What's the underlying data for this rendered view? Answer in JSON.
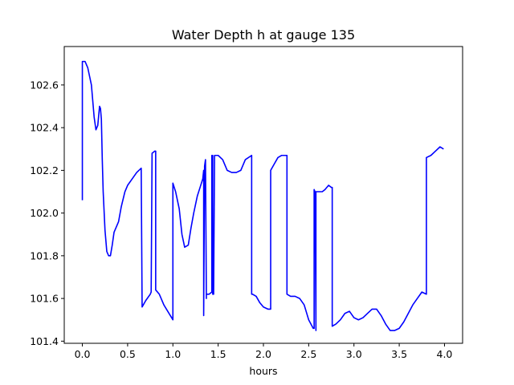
{
  "chart_data": {
    "type": "line",
    "title": "Water Depth h at gauge 135",
    "xlabel": "hours",
    "ylabel": "",
    "xlim": [
      -0.2,
      4.2
    ],
    "ylim": [
      101.39,
      102.78
    ],
    "xticks": [
      0.0,
      0.5,
      1.0,
      1.5,
      2.0,
      2.5,
      3.0,
      3.5,
      4.0
    ],
    "xtick_labels": [
      "0.0",
      "0.5",
      "1.0",
      "1.5",
      "2.0",
      "2.5",
      "3.0",
      "3.5",
      "4.0"
    ],
    "yticks": [
      101.4,
      101.6,
      101.8,
      102.0,
      102.2,
      102.4,
      102.6
    ],
    "ytick_labels": [
      "101.4",
      "101.6",
      "101.8",
      "102.0",
      "102.2",
      "102.4",
      "102.6"
    ],
    "grid": false,
    "series": [
      {
        "color": "#0000ff",
        "x": [
          0.0,
          0.0,
          0.03,
          0.06,
          0.1,
          0.13,
          0.15,
          0.17,
          0.19,
          0.2,
          0.21,
          0.22,
          0.23,
          0.25,
          0.27,
          0.29,
          0.31,
          0.33,
          0.35,
          0.37,
          0.4,
          0.43,
          0.47,
          0.5,
          0.55,
          0.6,
          0.65,
          0.66,
          0.66,
          0.7,
          0.75,
          0.76,
          0.77,
          0.8,
          0.81,
          0.81,
          0.85,
          0.9,
          1.0,
          1.0,
          1.03,
          1.07,
          1.1,
          1.13,
          1.17,
          1.2,
          1.23,
          1.27,
          1.3,
          1.33,
          1.34,
          1.34,
          1.35,
          1.36,
          1.37,
          1.37,
          1.4,
          1.43,
          1.43,
          1.44,
          1.44,
          1.45,
          1.46,
          1.46,
          1.5,
          1.55,
          1.6,
          1.65,
          1.7,
          1.75,
          1.8,
          1.87,
          1.87,
          1.88,
          1.92,
          1.96,
          2.0,
          2.05,
          2.08,
          2.08,
          2.12,
          2.16,
          2.2,
          2.25,
          2.26,
          2.26,
          2.3,
          2.35,
          2.4,
          2.45,
          2.5,
          2.55,
          2.56,
          2.56,
          2.57,
          2.58,
          2.58,
          2.6,
          2.65,
          2.68,
          2.72,
          2.75,
          2.75,
          2.76,
          2.76,
          2.8,
          2.85,
          2.9,
          2.95,
          3.0,
          3.05,
          3.1,
          3.15,
          3.2,
          3.25,
          3.3,
          3.35,
          3.4,
          3.45,
          3.5,
          3.55,
          3.6,
          3.65,
          3.7,
          3.75,
          3.8,
          3.8,
          3.85,
          3.9,
          3.95,
          3.99
        ],
        "y": [
          102.06,
          102.71,
          102.71,
          102.68,
          102.6,
          102.45,
          102.39,
          102.41,
          102.5,
          102.49,
          102.44,
          102.25,
          102.1,
          101.92,
          101.82,
          101.8,
          101.8,
          101.85,
          101.91,
          101.93,
          101.96,
          102.03,
          102.1,
          102.13,
          102.16,
          102.19,
          102.21,
          101.56,
          101.56,
          101.59,
          101.62,
          101.63,
          102.28,
          102.29,
          102.29,
          101.64,
          101.62,
          101.57,
          101.5,
          102.14,
          102.1,
          102.02,
          101.9,
          101.84,
          101.85,
          101.93,
          102.0,
          102.08,
          102.12,
          102.16,
          102.2,
          101.52,
          102.22,
          102.25,
          101.6,
          101.62,
          101.62,
          101.63,
          102.27,
          102.27,
          101.62,
          101.62,
          102.27,
          102.27,
          102.27,
          102.25,
          102.2,
          102.19,
          102.19,
          102.2,
          102.25,
          102.27,
          101.62,
          101.62,
          101.61,
          101.58,
          101.56,
          101.55,
          101.55,
          102.2,
          102.23,
          102.26,
          102.27,
          102.27,
          102.27,
          101.62,
          101.61,
          101.61,
          101.6,
          101.57,
          101.5,
          101.46,
          101.46,
          102.11,
          102.1,
          101.45,
          102.1,
          102.1,
          102.1,
          102.11,
          102.13,
          102.12,
          102.12,
          102.12,
          101.47,
          101.48,
          101.5,
          101.53,
          101.54,
          101.51,
          101.5,
          101.51,
          101.53,
          101.55,
          101.55,
          101.52,
          101.48,
          101.45,
          101.45,
          101.46,
          101.49,
          101.53,
          101.57,
          101.6,
          101.63,
          101.62,
          102.26,
          102.27,
          102.29,
          102.31,
          102.3
        ]
      }
    ]
  }
}
